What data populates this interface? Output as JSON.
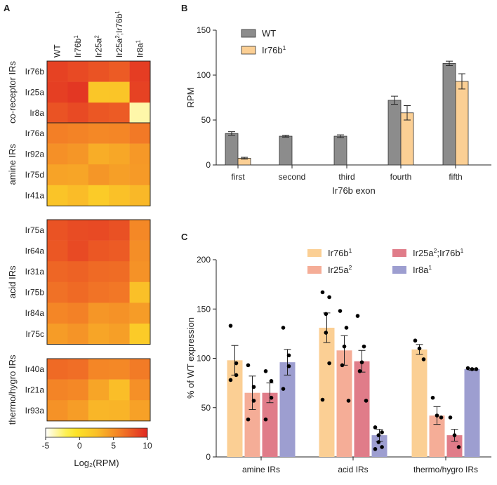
{
  "chart_data": [
    {
      "panel": "A",
      "type": "heatmap",
      "columns": [
        "WT",
        "Ir76b¹",
        "Ir25a²",
        "Ir25a²;Ir76b¹",
        "Ir8a¹"
      ],
      "colorbar": {
        "label": "Log₂(RPM)",
        "min": -5,
        "max": 10,
        "ticks": [
          "-5",
          "0",
          "5",
          "10"
        ]
      },
      "groups": [
        {
          "name": "co-receptor IRs",
          "rows": [
            "Ir76b",
            "Ir25a",
            "Ir8a"
          ],
          "values": [
            [
              8.8,
              8.4,
              8.0,
              7.6,
              9.0
            ],
            [
              8.9,
              9.3,
              2.0,
              2.1,
              8.8
            ],
            [
              8.0,
              8.4,
              7.8,
              7.6,
              -3.5
            ]
          ]
        },
        {
          "name": "amine IRs",
          "rows": [
            "Ir76a",
            "Ir92a",
            "Ir75d",
            "Ir41a"
          ],
          "values": [
            [
              5.9,
              5.7,
              5.4,
              5.5,
              6.2
            ],
            [
              5.0,
              4.7,
              3.5,
              3.8,
              4.6
            ],
            [
              4.0,
              3.9,
              4.7,
              4.2,
              4.5
            ],
            [
              2.2,
              2.7,
              1.6,
              2.4,
              2.9
            ]
          ]
        },
        {
          "name": "acid IRs",
          "rows": [
            "Ir75a",
            "Ir64a",
            "Ir31a",
            "Ir75b",
            "Ir84a",
            "Ir75c"
          ],
          "values": [
            [
              8.0,
              8.3,
              8.4,
              8.1,
              5.4
            ],
            [
              7.8,
              8.4,
              7.8,
              7.6,
              5.1
            ],
            [
              7.1,
              7.3,
              6.9,
              6.8,
              4.9
            ],
            [
              6.6,
              6.9,
              6.5,
              6.3,
              2.5
            ],
            [
              5.5,
              5.8,
              4.7,
              4.9,
              4.4
            ],
            [
              4.4,
              4.8,
              3.9,
              4.2,
              1.6
            ]
          ]
        },
        {
          "name": "thermo/hygro IRs",
          "rows": [
            "Ir40a",
            "Ir21a",
            "Ir93a"
          ],
          "values": [
            [
              6.9,
              6.7,
              5.5,
              5.4,
              6.1
            ],
            [
              5.6,
              5.4,
              3.9,
              2.6,
              5.0
            ],
            [
              4.9,
              4.3,
              3.0,
              3.1,
              4.1
            ]
          ]
        }
      ]
    },
    {
      "panel": "B",
      "type": "bar",
      "title": "",
      "xlabel": "Ir76b exon",
      "ylabel": "RPM",
      "ylim": [
        0,
        150
      ],
      "yticks": [
        "0",
        "50",
        "100",
        "150"
      ],
      "categories": [
        "first",
        "second",
        "third",
        "fourth",
        "fifth"
      ],
      "series": [
        {
          "name": "WT",
          "color": "#8c8c8c",
          "values": [
            35,
            32,
            32,
            72,
            113
          ],
          "errors": [
            2,
            1,
            1.5,
            4.5,
            2.5
          ]
        },
        {
          "name": "Ir76b¹",
          "color": "#fbcf94",
          "values": [
            7.5,
            0,
            0,
            58,
            93
          ],
          "errors": [
            1,
            0,
            0,
            8,
            8.5
          ]
        }
      ]
    },
    {
      "panel": "C",
      "type": "bar",
      "title": "",
      "xlabel": "",
      "ylabel": "% of WT expression",
      "ylim": [
        0,
        200
      ],
      "yticks": [
        "0",
        "50",
        "100",
        "150",
        "200"
      ],
      "categories": [
        "amine IRs",
        "acid IRs",
        "thermo/hygro IRs"
      ],
      "series": [
        {
          "name": "Ir76b¹",
          "color": "#fbcf94",
          "values": [
            98,
            131,
            109
          ],
          "errors": [
            15,
            15,
            5
          ],
          "points": [
            [
              133,
              95,
              83,
              78
            ],
            [
              167,
              162,
              145,
              126,
              95,
              58
            ],
            [
              118,
              110,
              99
            ]
          ]
        },
        {
          "name": "Ir25a²",
          "color": "#f5ad97",
          "values": [
            65,
            108,
            42
          ],
          "errors": [
            17,
            15,
            9
          ],
          "points": [
            [
              93,
              71,
              57,
              38
            ],
            [
              148,
              131,
              112,
              93,
              57
            ],
            [
              60,
              42,
              40
            ]
          ]
        },
        {
          "name": "Ir25a²;Ir76b¹",
          "color": "#e07c89",
          "values": [
            65,
            97,
            22
          ],
          "errors": [
            10,
            11,
            6
          ],
          "points": [
            [
              87,
              77,
              60,
              38
            ],
            [
              143,
              112,
              96,
              87,
              57
            ],
            [
              40,
              22,
              10
            ]
          ]
        },
        {
          "name": "Ir8a¹",
          "color": "#9d9ed0",
          "values": [
            96,
            22,
            89
          ],
          "errors": [
            13,
            6,
            1
          ],
          "points": [
            [
              131,
              103,
              92,
              69
            ],
            [
              30,
              25,
              22,
              15,
              10,
              8
            ],
            [
              90,
              89,
              89
            ]
          ]
        }
      ]
    }
  ]
}
